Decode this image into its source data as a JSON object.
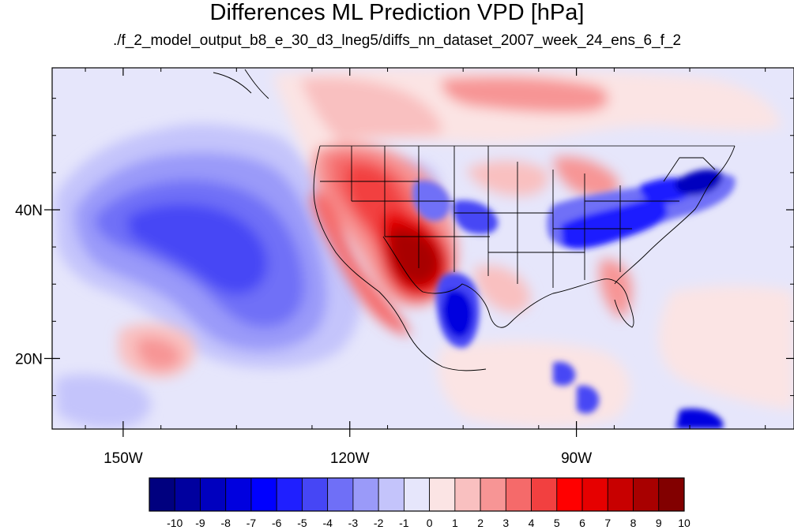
{
  "title": "Differences ML Prediction VPD [hPa]",
  "subtitle": "./f_2_model_output_b8_e_30_d3_lneg5/diffs_nn_dataset_2007_week_24_ens_6_f_2",
  "map": {
    "projection": "cylindrical-equidistant",
    "lon_range": [
      -159.4,
      -61.2
    ],
    "lat_range": [
      10.5,
      59.1
    ],
    "lat_ticks": [
      {
        "value": 40,
        "label": "40N"
      },
      {
        "value": 20,
        "label": "20N"
      }
    ],
    "lon_ticks": [
      {
        "value": -150,
        "label": "150W"
      },
      {
        "value": -120,
        "label": "120W"
      },
      {
        "value": -90,
        "label": "90W"
      }
    ]
  },
  "colorbar": {
    "labels": [
      "-10",
      "-9",
      "-8",
      "-7",
      "-6",
      "-5",
      "-4",
      "-3",
      "-2",
      "-1",
      "0",
      "1",
      "2",
      "3",
      "4",
      "5",
      "6",
      "7",
      "8",
      "9",
      "10"
    ],
    "colors": [
      "#00007f",
      "#00009f",
      "#0000bf",
      "#0000df",
      "#0000ff",
      "#1f1fff",
      "#4646f5",
      "#6f6ff7",
      "#9a9af9",
      "#c4c4fb",
      "#e6e6fb",
      "#fbe4e4",
      "#f9c0c0",
      "#f79595",
      "#f56a6a",
      "#f24040",
      "#ff0000",
      "#e60000",
      "#c80000",
      "#a80000",
      "#820000"
    ]
  }
}
